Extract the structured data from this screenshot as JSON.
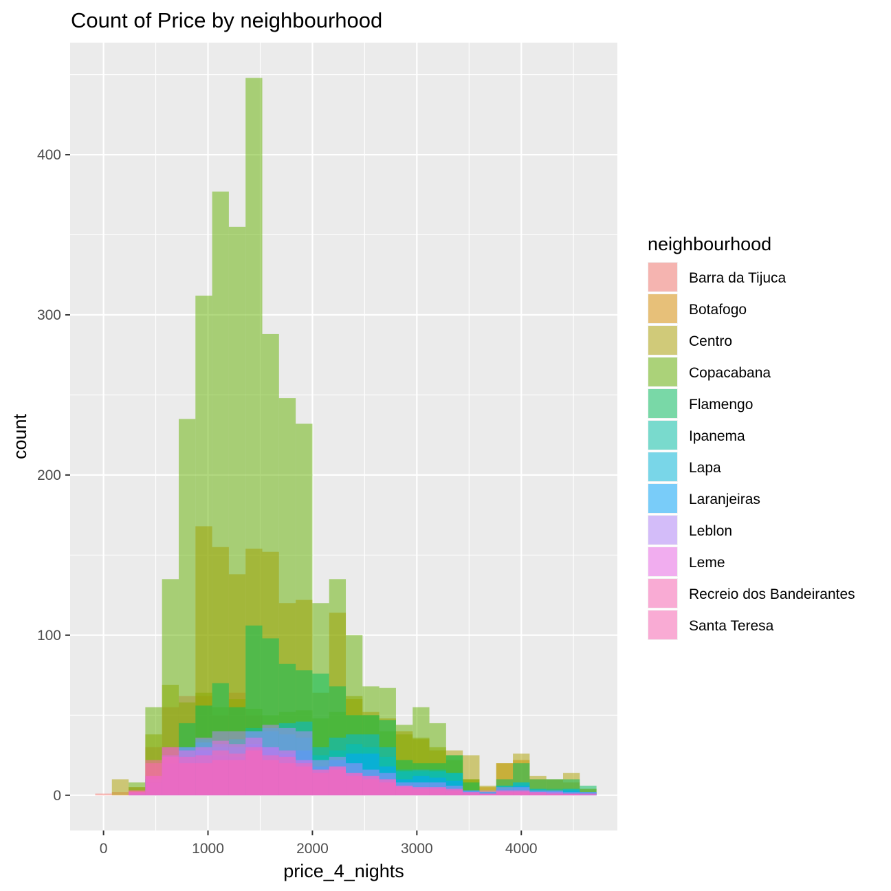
{
  "chart_data": {
    "type": "bar",
    "subtype": "overlaid histogram",
    "title": "Count of Price by neighbourhood",
    "xlabel": "price_4_nights",
    "ylabel": "count",
    "xlim": [
      -320,
      4920
    ],
    "ylim": [
      -22,
      470
    ],
    "x_ticks": [
      0,
      1000,
      2000,
      3000,
      4000
    ],
    "x_tick_labels": [
      "0",
      "1000",
      "2000",
      "3000",
      "4000"
    ],
    "y_ticks": [
      0,
      100,
      200,
      300,
      400
    ],
    "y_tick_labels": [
      "0",
      "100",
      "200",
      "300",
      "400"
    ],
    "grid": true,
    "background": "#ebebeb",
    "bar_opacity": 0.5,
    "bin_width": 160,
    "bins_start": -80,
    "legend": {
      "title": "neighbourhood",
      "position": "right"
    },
    "series": [
      {
        "name": "Barra da Tijuca",
        "color": "#F8766D",
        "values": [
          1,
          2,
          5,
          30,
          55,
          62,
          62,
          50,
          64,
          50,
          25,
          16,
          10,
          8,
          6,
          6,
          5,
          4,
          3,
          4,
          3,
          2,
          2,
          1,
          1,
          1,
          1,
          1,
          1,
          0
        ]
      },
      {
        "name": "Botafogo",
        "color": "#DB8E00",
        "values": [
          0,
          0,
          0,
          0,
          0,
          0,
          168,
          155,
          138,
          154,
          152,
          120,
          122,
          64,
          114,
          60,
          52,
          48,
          40,
          35,
          28,
          22,
          10,
          5,
          20,
          22,
          10,
          10,
          8,
          4
        ]
      },
      {
        "name": "Centro",
        "color": "#AEA200",
        "values": [
          0,
          10,
          5,
          38,
          69,
          58,
          64,
          55,
          60,
          54,
          50,
          52,
          53,
          48,
          52,
          62,
          50,
          40,
          38,
          36,
          30,
          28,
          25,
          6,
          20,
          26,
          12,
          10,
          14,
          4
        ]
      },
      {
        "name": "Copacabana",
        "color": "#64B200",
        "values": [
          0,
          0,
          8,
          55,
          135,
          235,
          312,
          377,
          355,
          448,
          288,
          248,
          232,
          120,
          135,
          100,
          68,
          67,
          44,
          55,
          45,
          25,
          10,
          0,
          0,
          0,
          0,
          0,
          0,
          0
        ]
      },
      {
        "name": "Flamengo",
        "color": "#00BD5C",
        "values": [
          0,
          0,
          2,
          12,
          30,
          45,
          56,
          70,
          55,
          106,
          98,
          82,
          78,
          76,
          68,
          50,
          50,
          47,
          22,
          20,
          20,
          25,
          8,
          2,
          10,
          20,
          10,
          10,
          10,
          6
        ]
      },
      {
        "name": "Ipanema",
        "color": "#00C1A7",
        "values": [
          0,
          0,
          1,
          10,
          25,
          30,
          35,
          30,
          35,
          42,
          40,
          38,
          36,
          25,
          28,
          32,
          30,
          24,
          16,
          15,
          16,
          14,
          3,
          2,
          6,
          8,
          4,
          4,
          4,
          2
        ]
      },
      {
        "name": "Lapa",
        "color": "#00BADE",
        "values": [
          0,
          0,
          1,
          10,
          25,
          30,
          33,
          32,
          30,
          40,
          42,
          45,
          46,
          30,
          36,
          38,
          38,
          30,
          15,
          16,
          15,
          14,
          3,
          2,
          6,
          8,
          4,
          3,
          4,
          2
        ]
      },
      {
        "name": "Laranjeiras",
        "color": "#00A6FF",
        "values": [
          0,
          0,
          1,
          8,
          20,
          24,
          28,
          25,
          24,
          32,
          30,
          26,
          28,
          18,
          22,
          26,
          26,
          18,
          10,
          12,
          11,
          9,
          3,
          2,
          4,
          6,
          3,
          3,
          3,
          2
        ]
      },
      {
        "name": "Leblon",
        "color": "#B385FF",
        "values": [
          0,
          0,
          2,
          12,
          25,
          30,
          36,
          40,
          40,
          40,
          44,
          42,
          40,
          22,
          24,
          20,
          16,
          14,
          8,
          8,
          8,
          6,
          3,
          3,
          5,
          5,
          3,
          3,
          2,
          2
        ]
      },
      {
        "name": "Leme",
        "color": "#EF67EB",
        "values": [
          0,
          0,
          2,
          12,
          24,
          28,
          30,
          34,
          32,
          36,
          30,
          28,
          22,
          16,
          18,
          14,
          12,
          10,
          6,
          5,
          5,
          4,
          2,
          1,
          3,
          3,
          2,
          2,
          1,
          1
        ]
      },
      {
        "name": "Recreio dos Bandeirantes",
        "color": "#FF63B6",
        "values": [
          0,
          0,
          3,
          20,
          30,
          20,
          20,
          22,
          22,
          28,
          22,
          20,
          18,
          14,
          16,
          12,
          10,
          8,
          5,
          4,
          4,
          3,
          1,
          1,
          2,
          2,
          1,
          1,
          1,
          0
        ]
      },
      {
        "name": "Santa Teresa",
        "color": "#FF63B6",
        "values": [
          0,
          0,
          3,
          22,
          30,
          24,
          25,
          28,
          26,
          30,
          25,
          24,
          20,
          16,
          18,
          14,
          12,
          10,
          6,
          5,
          5,
          4,
          2,
          1,
          3,
          3,
          2,
          1,
          1,
          1
        ]
      }
    ]
  }
}
